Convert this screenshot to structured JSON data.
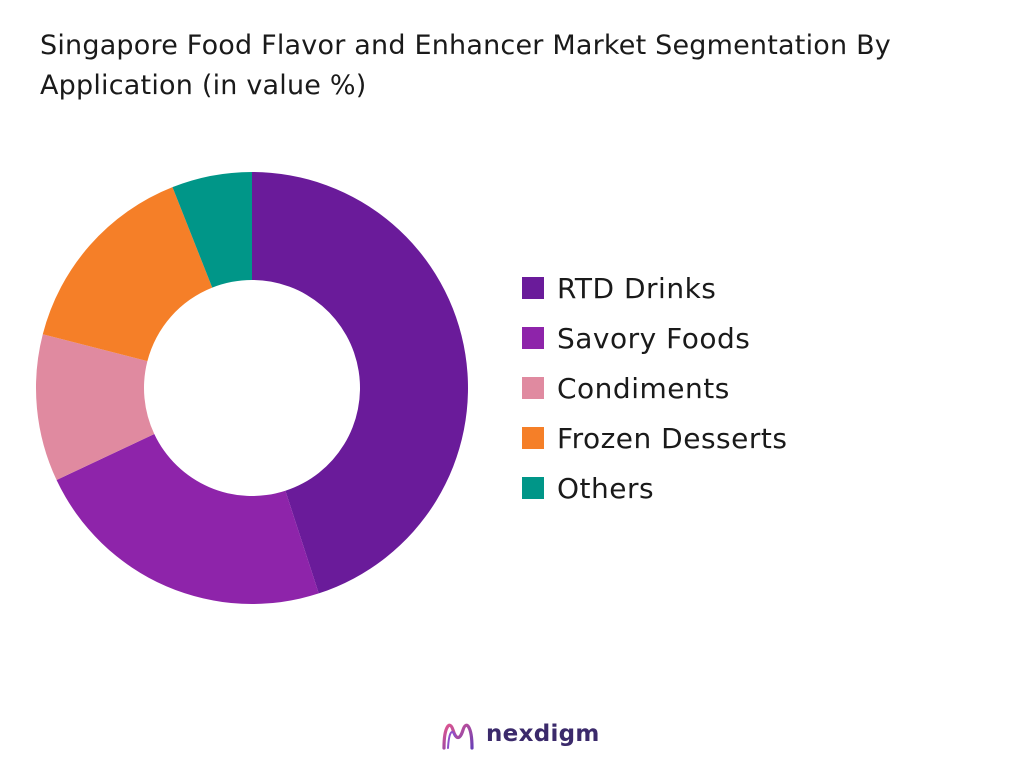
{
  "title": "Singapore Food Flavor and Enhancer Market Segmentation By Application (in value %)",
  "chart_data": {
    "type": "pie",
    "subtype": "donut",
    "categories": [
      "RTD Drinks",
      "Savory Foods",
      "Condiments",
      "Frozen Desserts",
      "Others"
    ],
    "values": [
      45,
      23,
      11,
      15,
      6
    ],
    "colors": [
      "#6a1b9a",
      "#8e24aa",
      "#e08aa0",
      "#f57f28",
      "#009688"
    ],
    "legend_position": "right"
  },
  "brand": {
    "name": "nexdigm",
    "logo_icon": "nexdigm-logo-icon"
  }
}
